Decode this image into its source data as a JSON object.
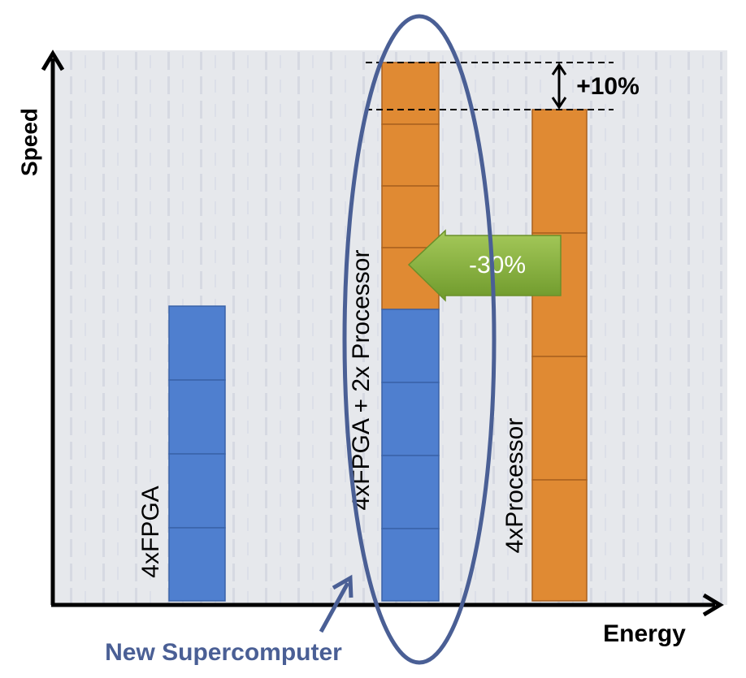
{
  "axes": {
    "y_label": "Speed",
    "x_label": "Energy"
  },
  "bars": [
    {
      "label": "4xFPGA"
    },
    {
      "label": "4xFPGA + 2x Processor"
    },
    {
      "label": "4xProcessor"
    }
  ],
  "annotations": {
    "speedup": "+10%",
    "energy_saving": "-30%",
    "callout": "New Supercomputer"
  }
}
